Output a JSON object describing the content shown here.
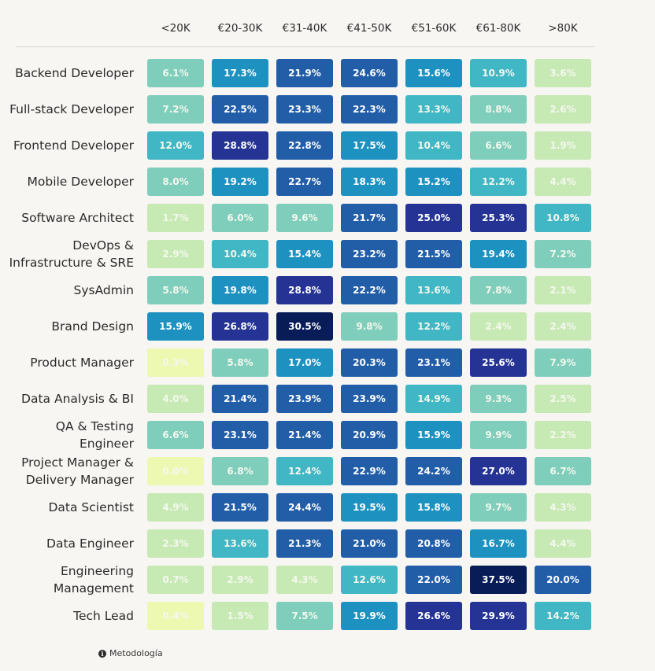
{
  "chart_data": {
    "type": "heatmap",
    "x_categories": [
      "<20K",
      "€20-30K",
      "€31-40K",
      "€41-50K",
      "€51-60K",
      "€61-80K",
      ">80K"
    ],
    "y_categories": [
      "Backend Developer",
      "Full-stack Developer",
      "Frontend Developer",
      "Mobile Developer",
      "Software Architect",
      "DevOps &\nInfrastructure & SRE",
      "SysAdmin",
      "Brand Design",
      "Product Manager",
      "Data Analysis & BI",
      "QA & Testing\nEngineer",
      "Project Manager &\nDelivery Manager",
      "Data Scientist",
      "Data Engineer",
      "Engineering\nManagement",
      "Tech Lead"
    ],
    "values": [
      [
        6.1,
        17.3,
        21.9,
        24.6,
        15.6,
        10.9,
        3.6
      ],
      [
        7.2,
        22.5,
        23.3,
        22.3,
        13.3,
        8.8,
        2.6
      ],
      [
        12.0,
        28.8,
        22.8,
        17.5,
        10.4,
        6.6,
        1.9
      ],
      [
        8.0,
        19.2,
        22.7,
        18.3,
        15.2,
        12.2,
        4.4
      ],
      [
        1.7,
        6.0,
        9.6,
        21.7,
        25.0,
        25.3,
        10.8
      ],
      [
        2.9,
        10.4,
        15.4,
        23.2,
        21.5,
        19.4,
        7.2
      ],
      [
        5.8,
        19.8,
        28.8,
        22.2,
        13.6,
        7.8,
        2.1
      ],
      [
        15.9,
        26.8,
        30.5,
        9.8,
        12.2,
        2.4,
        2.4
      ],
      [
        0.3,
        5.8,
        17.0,
        20.3,
        23.1,
        25.6,
        7.9
      ],
      [
        4.0,
        21.4,
        23.9,
        23.9,
        14.9,
        9.3,
        2.5
      ],
      [
        6.6,
        23.1,
        21.4,
        20.9,
        15.9,
        9.9,
        2.2
      ],
      [
        0.0,
        6.8,
        12.4,
        22.9,
        24.2,
        27.0,
        6.7
      ],
      [
        4.9,
        21.5,
        24.4,
        19.5,
        15.8,
        9.7,
        4.3
      ],
      [
        2.3,
        13.6,
        21.3,
        21.0,
        20.8,
        16.7,
        4.4
      ],
      [
        0.7,
        2.9,
        4.3,
        12.6,
        22.0,
        37.5,
        20.0
      ],
      [
        0.4,
        1.5,
        7.5,
        19.9,
        26.6,
        29.9,
        14.2
      ]
    ],
    "unit": "%",
    "colors": {
      "scale": [
        "#edf8b1",
        "#c7e9b4",
        "#7fcdbb",
        "#41b6c4",
        "#1d91c0",
        "#225ea8",
        "#253494",
        "#081d58"
      ],
      "background": "#f7f6f3"
    }
  },
  "footer": {
    "info_icon": "info-icon",
    "link_label": "Metodología"
  }
}
